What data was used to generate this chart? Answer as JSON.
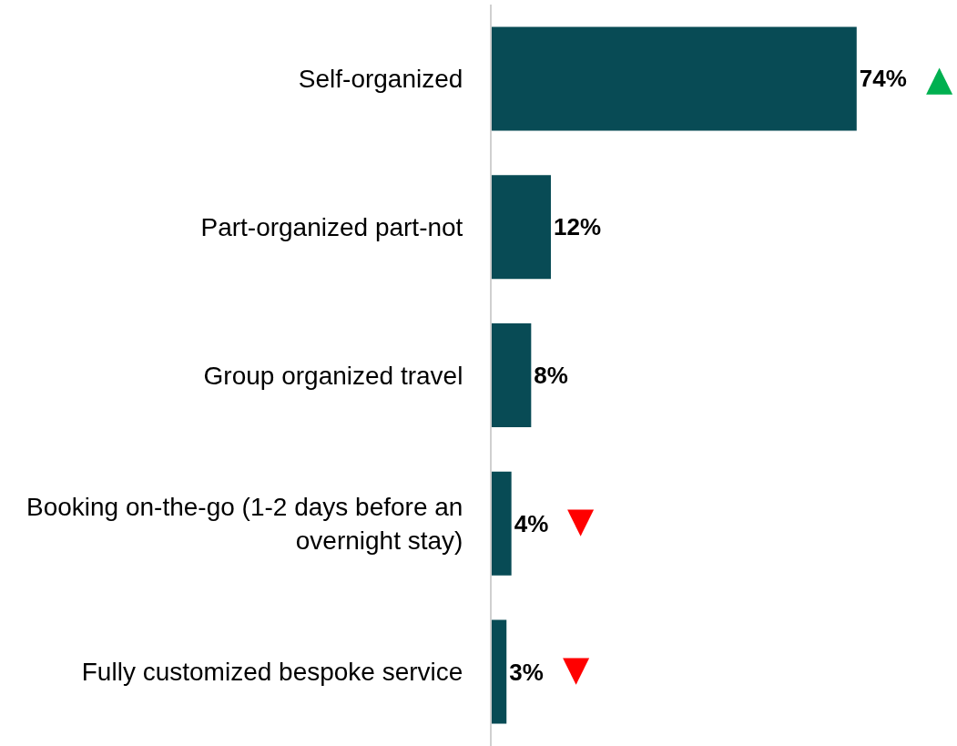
{
  "chart_data": {
    "type": "bar",
    "orientation": "horizontal",
    "categories": [
      "Self-organized",
      "Part-organized part-not",
      "Group organized travel",
      "Booking on-the-go (1-2 days before an overnight stay)",
      "Fully customized bespoke service"
    ],
    "values": [
      74,
      12,
      8,
      4,
      3
    ],
    "color": "#084b55",
    "value_labels": [
      "74%",
      "12%",
      "8%",
      "4%",
      "3%"
    ],
    "annotations": [
      {
        "text": "▲",
        "x": 74,
        "y": "Self-organized"
      },
      {
        "text": "▼",
        "x": 4,
        "y": "Booking on-the-go (1-2 days before an overnight stay)"
      },
      {
        "text": "▼",
        "x": 3,
        "y": "Fully customized bespoke service"
      }
    ]
  }
}
